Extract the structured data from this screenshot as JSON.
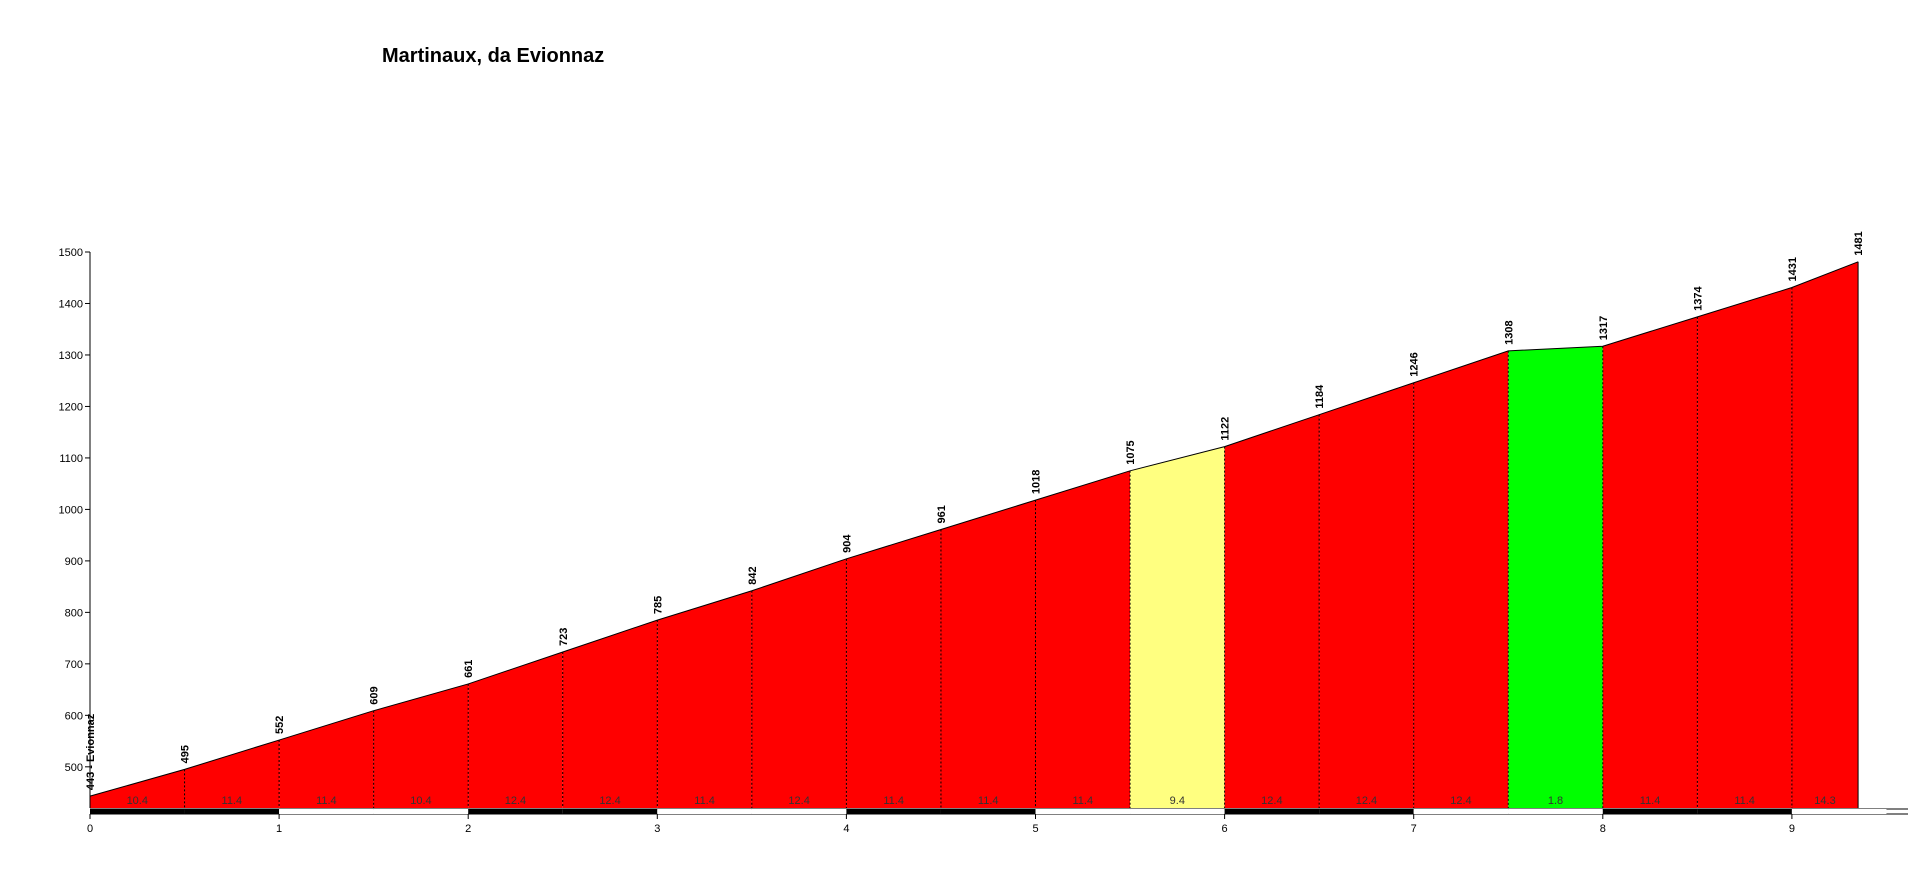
{
  "chart_data": {
    "type": "area",
    "title": "Martinaux, da Evionnaz",
    "xlabel": "",
    "ylabel": "",
    "xlim": [
      0,
      9.5
    ],
    "ylim": [
      420,
      1500
    ],
    "x_ticks": [
      0,
      1,
      2,
      3,
      4,
      5,
      6,
      7,
      8,
      9
    ],
    "y_ticks": [
      500,
      600,
      700,
      800,
      900,
      1000,
      1100,
      1200,
      1300,
      1400,
      1500
    ],
    "x": [
      0,
      0.5,
      1,
      1.5,
      2,
      2.5,
      3,
      3.5,
      4,
      4.5,
      5,
      5.5,
      6,
      6.5,
      7,
      7.5,
      8,
      8.5,
      9,
      9.35
    ],
    "elevation": [
      443,
      495,
      552,
      609,
      661,
      723,
      785,
      842,
      904,
      961,
      1018,
      1075,
      1122,
      1184,
      1246,
      1308,
      1317,
      1374,
      1431,
      1481
    ],
    "point_labels": [
      "443 - Evionnaz",
      "495",
      "552",
      "609",
      "661",
      "723",
      "785",
      "842",
      "904",
      "961",
      "1018",
      "1075",
      "1122",
      "1184",
      "1246",
      "1308",
      "1317",
      "1374",
      "1431",
      "1481"
    ],
    "gradients": [
      "10.4",
      "11.4",
      "11.4",
      "10.4",
      "12.4",
      "12.4",
      "11.4",
      "12.4",
      "11.4",
      "11.4",
      "11.4",
      "9.4",
      "12.4",
      "12.4",
      "12.4",
      "1.8",
      "11.4",
      "11.4",
      "14.3"
    ],
    "segment_colors": [
      "#ff0000",
      "#ff0000",
      "#ff0000",
      "#ff0000",
      "#ff0000",
      "#ff0000",
      "#ff0000",
      "#ff0000",
      "#ff0000",
      "#ff0000",
      "#ff0000",
      "#ffff80",
      "#ff0000",
      "#ff0000",
      "#ff0000",
      "#00ff00",
      "#ff0000",
      "#ff0000",
      "#ff0000"
    ]
  }
}
